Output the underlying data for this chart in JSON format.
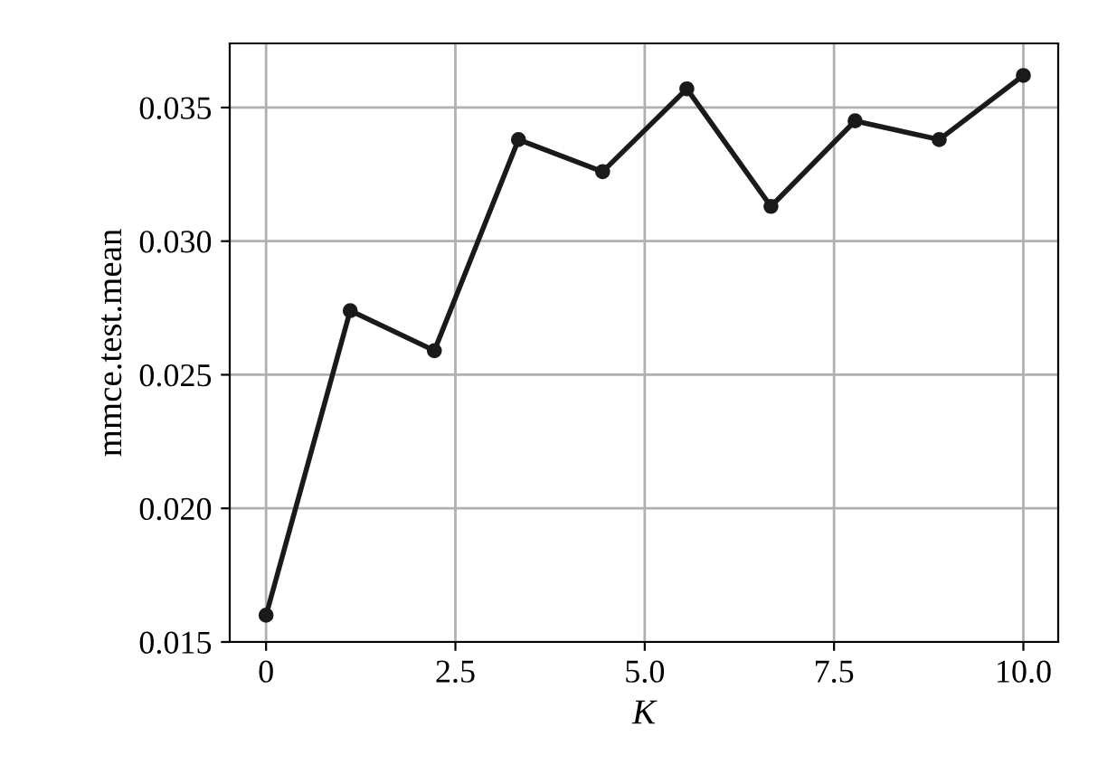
{
  "chart_data": {
    "type": "line",
    "xlabel": "K",
    "ylabel": "mmce.test.mean",
    "x": [
      0,
      1.111,
      2.222,
      3.333,
      4.444,
      5.556,
      6.667,
      7.778,
      8.889,
      10
    ],
    "series": [
      {
        "color": "#1a1a1a",
        "values": [
          0.016,
          0.0274,
          0.0259,
          0.0338,
          0.0326,
          0.0357,
          0.0313,
          0.0345,
          0.0338,
          0.0362
        ]
      }
    ],
    "xlim": [
      -0.48,
      10.46
    ],
    "xticks": [
      {
        "value": 0,
        "label": "0"
      },
      2.5,
      {
        "value": 5,
        "label": "5.0"
      },
      7.5,
      {
        "value": 10,
        "label": "10.0"
      }
    ],
    "ylim": [
      0.015,
      0.0374
    ],
    "yticks": [
      0.015,
      {
        "value": 0.02,
        "label": "0.020"
      },
      0.025,
      {
        "value": 0.03,
        "label": "0.030"
      },
      0.035
    ],
    "grid": true,
    "marker": "circle",
    "line_style": "solid",
    "legend": false
  }
}
